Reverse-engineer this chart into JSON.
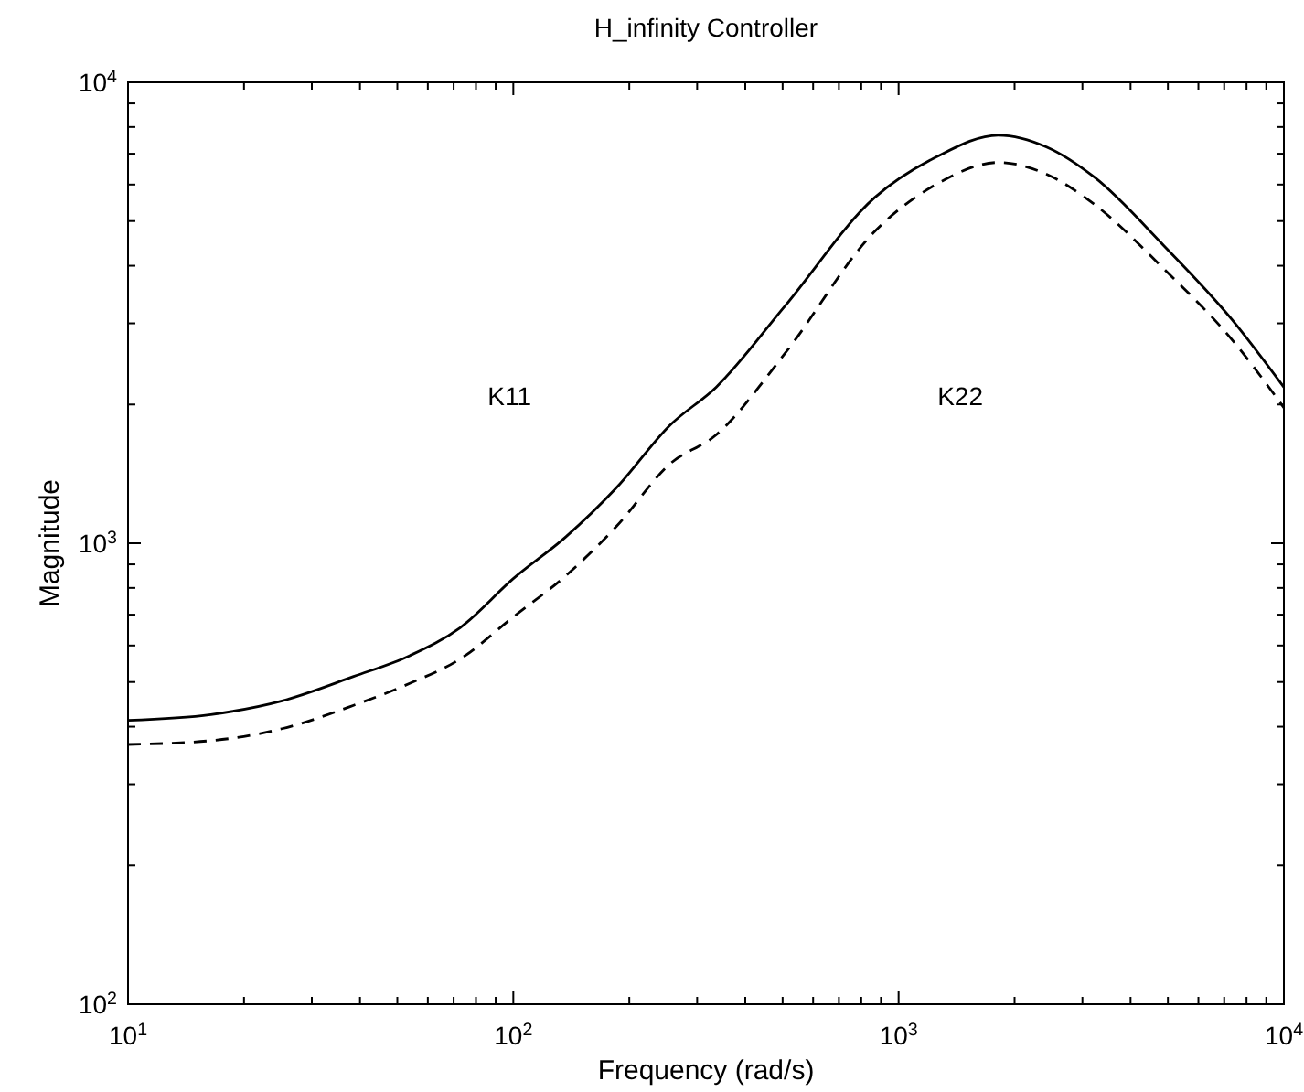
{
  "chart_data": {
    "type": "line",
    "title": "H_infinity Controller",
    "xlabel": "Frequency (rad/s)",
    "ylabel": "Magnitude",
    "log": "xy",
    "grid": false,
    "xlim": [
      10,
      10000
    ],
    "ylim": [
      100,
      10000
    ],
    "xticks": [
      {
        "value": 10,
        "label": "10$^{1}$"
      },
      {
        "value": 20,
        "label": null
      },
      {
        "value": 30,
        "label": null
      },
      {
        "value": 40,
        "label": null
      },
      {
        "value": 50,
        "label": null
      },
      {
        "value": 60,
        "label": null
      },
      {
        "value": 70,
        "label": null
      },
      {
        "value": 80,
        "label": null
      },
      {
        "value": 90,
        "label": null
      },
      {
        "value": 100,
        "label": "10$^{2}$"
      },
      {
        "value": 200,
        "label": null
      },
      {
        "value": 300,
        "label": null
      },
      {
        "value": 400,
        "label": null
      },
      {
        "value": 500,
        "label": null
      },
      {
        "value": 600,
        "label": null
      },
      {
        "value": 700,
        "label": null
      },
      {
        "value": 800,
        "label": null
      },
      {
        "value": 900,
        "label": null
      },
      {
        "value": 1000,
        "label": "10$^{3}$"
      },
      {
        "value": 2000,
        "label": null
      },
      {
        "value": 3000,
        "label": null
      },
      {
        "value": 4000,
        "label": null
      },
      {
        "value": 5000,
        "label": null
      },
      {
        "value": 6000,
        "label": null
      },
      {
        "value": 7000,
        "label": null
      },
      {
        "value": 8000,
        "label": null
      },
      {
        "value": 9000,
        "label": null
      },
      {
        "value": 10000,
        "label": "10$^{4}$"
      }
    ],
    "yticks": [
      {
        "value": 100,
        "label": "10$^{2}$"
      },
      {
        "value": 200,
        "label": null
      },
      {
        "value": 300,
        "label": null
      },
      {
        "value": 400,
        "label": null
      },
      {
        "value": 500,
        "label": null
      },
      {
        "value": 600,
        "label": null
      },
      {
        "value": 700,
        "label": null
      },
      {
        "value": 800,
        "label": null
      },
      {
        "value": 900,
        "label": null
      },
      {
        "value": 1000,
        "label": "10$^{3}$"
      },
      {
        "value": 2000,
        "label": null
      },
      {
        "value": 3000,
        "label": null
      },
      {
        "value": 4000,
        "label": null
      },
      {
        "value": 5000,
        "label": null
      },
      {
        "value": 6000,
        "label": null
      },
      {
        "value": 7000,
        "label": null
      },
      {
        "value": 8000,
        "label": null
      },
      {
        "value": 9000,
        "label": null
      },
      {
        "value": 10000,
        "label": "10$^{4}$"
      }
    ],
    "series": [
      {
        "color": "#000000",
        "line_style": "solid",
        "x": [
          10,
          16.4,
          25.1,
          38.5,
          54,
          72.8,
          100,
          137,
          185,
          255,
          336,
          507,
          866,
          1254,
          1814,
          2421,
          3227,
          4870,
          7340,
          10000
        ],
        "values": [
          413,
          425,
          455,
          514,
          571,
          656,
          838,
          1033,
          1318,
          1803,
          2180,
          3270,
          5620,
          6890,
          7680,
          7240,
          6220,
          4430,
          3054,
          2180
        ]
      },
      {
        "color": "#000000",
        "line_style": "dashed",
        "x": [
          10,
          16.4,
          25.1,
          38.5,
          54,
          72.8,
          100,
          137,
          185,
          255,
          336,
          507,
          866,
          1254,
          1814,
          2421,
          3227,
          4870,
          7340,
          10000
        ],
        "values": [
          366,
          373,
          396,
          445,
          497,
          561,
          692,
          851,
          1087,
          1486,
          1718,
          2581,
          4743,
          6010,
          6700,
          6320,
          5430,
          3945,
          2762,
          1968
        ]
      }
    ],
    "annotations": [
      "K11",
      "K22"
    ]
  }
}
